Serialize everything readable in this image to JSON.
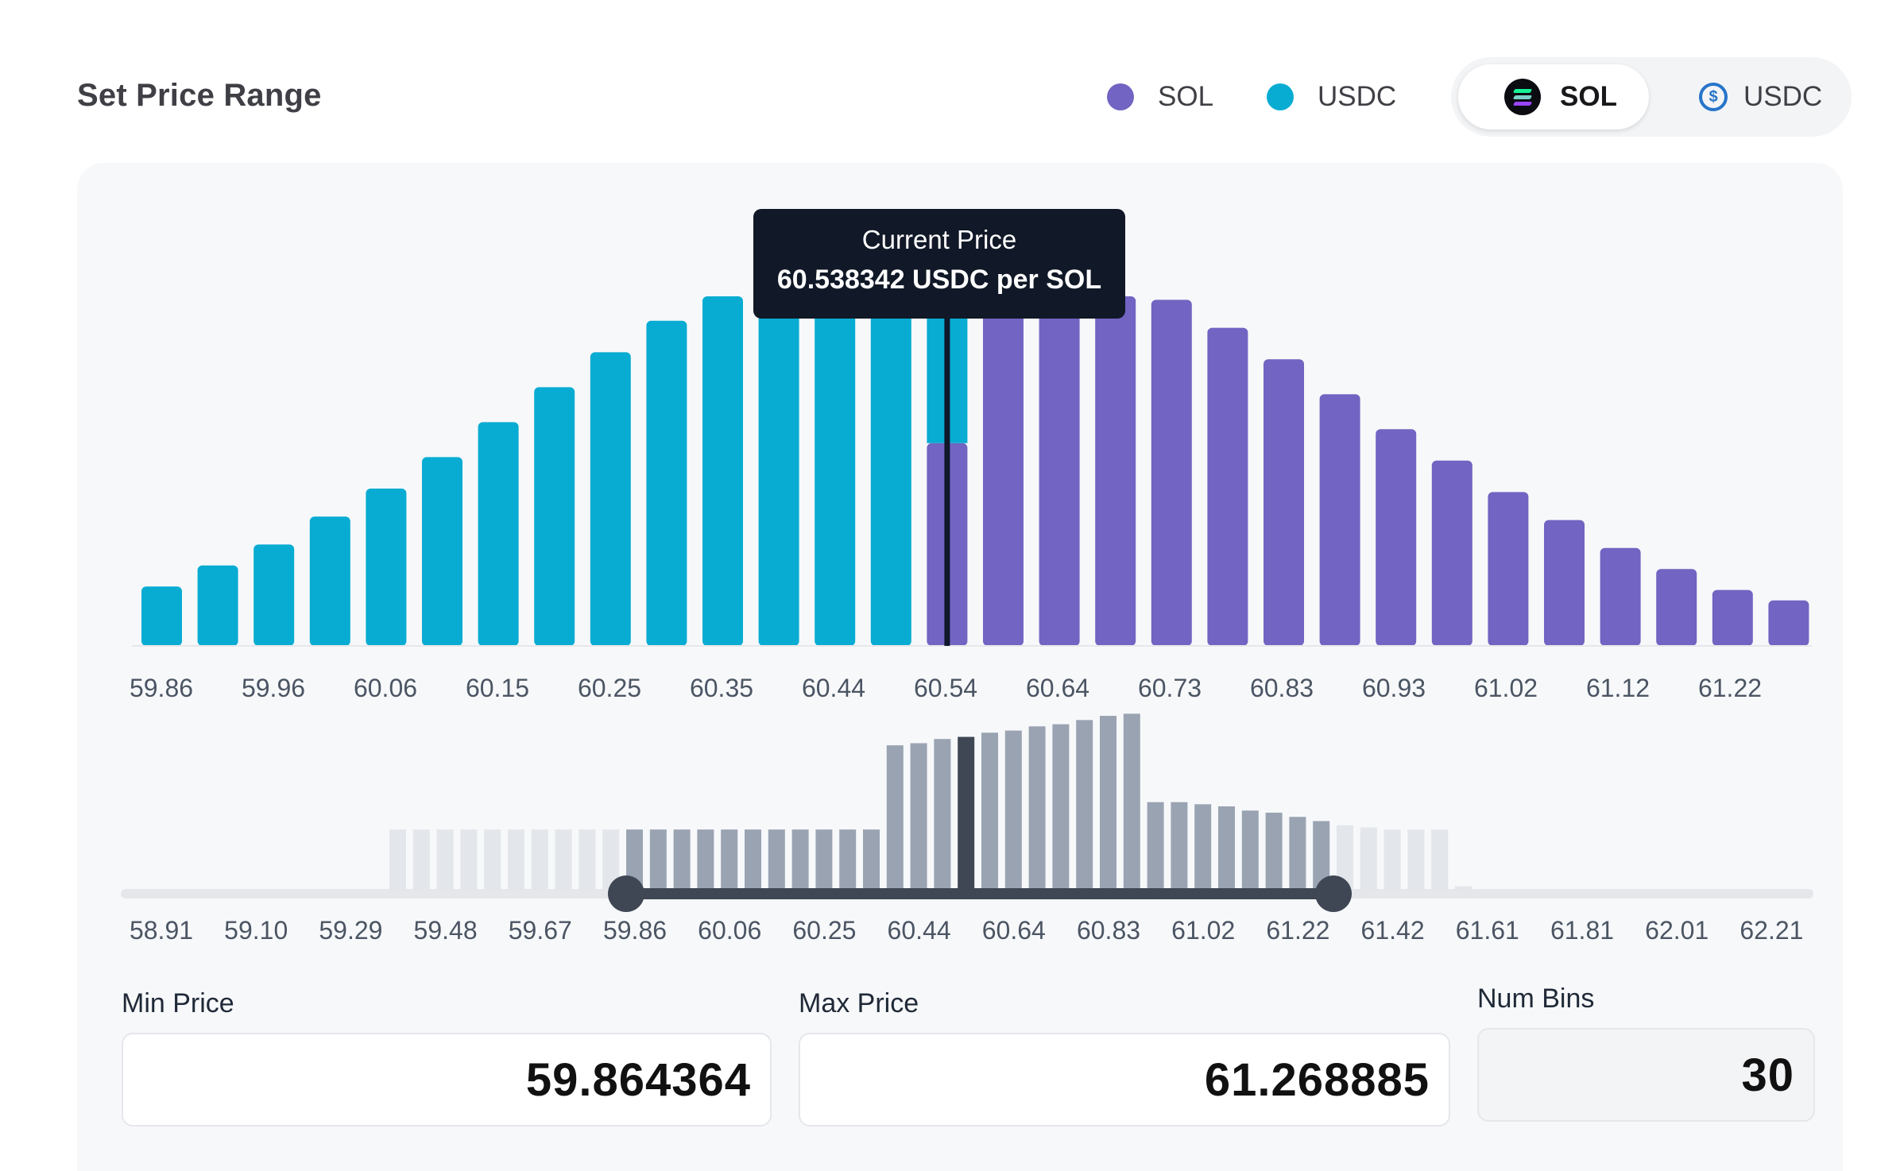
{
  "title": "Set Price Range",
  "legend": [
    {
      "label": "SOL",
      "color": "#7164c2"
    },
    {
      "label": "USDC",
      "color": "#08acd2"
    }
  ],
  "token_toggle": {
    "options": [
      {
        "label": "SOL",
        "icon": "solana-icon",
        "active": true
      },
      {
        "label": "USDC",
        "icon": "usdc-icon",
        "active": false
      }
    ]
  },
  "tooltip": {
    "title": "Current Price",
    "value": "60.538342 USDC per SOL"
  },
  "chart_data": [
    {
      "type": "bar",
      "name": "liquidity-distribution",
      "series": [
        {
          "name": "USDC",
          "color": "#08acd2",
          "values": [
            0.17,
            0.23,
            0.29,
            0.37,
            0.45,
            0.54,
            0.64,
            0.74,
            0.84,
            0.93,
            1.0,
            1.0,
            1.0,
            1.0,
            0.59,
            0,
            0,
            0,
            0,
            0,
            0,
            0,
            0,
            0,
            0,
            0,
            0,
            0,
            0,
            0
          ]
        },
        {
          "name": "SOL",
          "color": "#7164c2",
          "values": [
            0,
            0,
            0,
            0,
            0,
            0,
            0,
            0,
            0,
            0,
            0,
            0,
            0,
            0,
            0.58,
            1.0,
            1.0,
            1.0,
            0.99,
            0.91,
            0.82,
            0.72,
            0.62,
            0.53,
            0.44,
            0.36,
            0.28,
            0.22,
            0.16,
            0.13
          ]
        }
      ],
      "x_tick_labels": [
        "59.86",
        "59.96",
        "60.06",
        "60.15",
        "60.25",
        "60.35",
        "60.44",
        "60.54",
        "60.64",
        "60.73",
        "60.83",
        "60.93",
        "61.02",
        "61.12",
        "61.22"
      ],
      "current_price": 60.538342,
      "current_bin_index": 14,
      "ylabel": "",
      "xlabel": ""
    },
    {
      "type": "bar",
      "name": "range-overview",
      "values": [
        0.29,
        0.29,
        0.29,
        0.29,
        0.29,
        0.29,
        0.29,
        0.29,
        0.29,
        0.29,
        0.29,
        0.29,
        0.29,
        0.29,
        0.29,
        0.29,
        0.29,
        0.29,
        0.29,
        0.29,
        0.29,
        0.69,
        0.7,
        0.72,
        0.73,
        0.75,
        0.76,
        0.78,
        0.79,
        0.81,
        0.83,
        0.84,
        0.42,
        0.42,
        0.41,
        0.4,
        0.38,
        0.37,
        0.35,
        0.33,
        0.31,
        0.3,
        0.29,
        0.29,
        0.29,
        0.02
      ],
      "selected_range": [
        59.864364,
        61.268885
      ],
      "current_bar_index": 24,
      "x_tick_labels": [
        "58.91",
        "59.10",
        "59.29",
        "59.48",
        "59.67",
        "59.86",
        "60.06",
        "60.25",
        "60.44",
        "60.64",
        "60.83",
        "61.02",
        "61.22",
        "61.42",
        "61.61",
        "61.81",
        "62.01",
        "62.21"
      ]
    }
  ],
  "inputs": {
    "min_price": {
      "label": "Min Price",
      "value": "59.864364"
    },
    "max_price": {
      "label": "Max Price",
      "value": "61.268885"
    },
    "num_bins": {
      "label": "Num Bins",
      "value": "30"
    }
  },
  "colors": {
    "usdc": "#08acd2",
    "sol": "#7164c2",
    "overview_in_range": "#9aa3b2",
    "overview_out_range": "#e3e6ea",
    "overview_current": "#3f4654",
    "slider_track": "#e5e7eb",
    "slider_range": "#3f4654"
  }
}
